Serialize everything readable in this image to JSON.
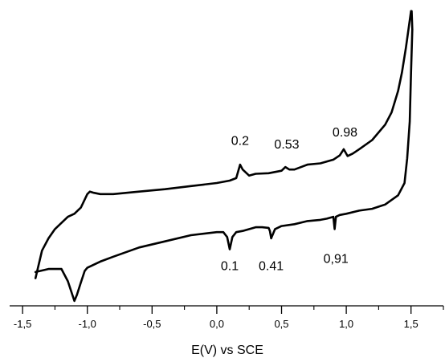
{
  "chart_data": {
    "type": "line",
    "title": "",
    "xlabel": "E(V) vs SCE",
    "ylabel": "",
    "xlim": [
      -1.6,
      1.75
    ],
    "ylim": [
      -1.0,
      3.85
    ],
    "grid": false,
    "legend": "none",
    "x_ticks": [
      -1.5,
      -1.0,
      -0.5,
      0.0,
      0.5,
      1.0,
      1.5
    ],
    "x_tick_labels": [
      "-1,5",
      "-1,0",
      "-0,5",
      "0,0",
      "0,5",
      "1,0",
      "1,5"
    ],
    "line_color": "#000000",
    "series": [
      {
        "x": [
          -1.4,
          -1.35,
          -1.3,
          -1.25,
          -1.2,
          -1.15,
          -1.1,
          -1.05,
          -1.0,
          -0.98,
          -0.95,
          -0.9,
          -0.8,
          -0.6,
          -0.4,
          -0.2,
          0.0,
          0.1,
          0.15,
          0.18,
          0.2,
          0.25,
          0.3,
          0.4,
          0.5,
          0.53,
          0.56,
          0.6,
          0.7,
          0.8,
          0.9,
          0.95,
          0.98,
          1.01,
          1.05,
          1.1,
          1.2,
          1.3,
          1.35,
          1.4,
          1.43,
          1.46,
          1.48,
          1.5,
          1.505,
          1.51
        ],
        "y": [
          -0.55,
          -0.1,
          0.1,
          0.25,
          0.35,
          0.45,
          0.5,
          0.6,
          0.82,
          0.86,
          0.84,
          0.82,
          0.82,
          0.86,
          0.9,
          0.95,
          1.0,
          1.04,
          1.08,
          1.3,
          1.22,
          1.12,
          1.15,
          1.16,
          1.2,
          1.26,
          1.22,
          1.22,
          1.3,
          1.32,
          1.38,
          1.45,
          1.55,
          1.44,
          1.48,
          1.55,
          1.7,
          1.95,
          2.15,
          2.5,
          2.8,
          3.2,
          3.5,
          3.8,
          3.8,
          3.5
        ]
      },
      {
        "x": [
          1.51,
          1.5,
          1.49,
          1.47,
          1.45,
          1.4,
          1.3,
          1.2,
          1.1,
          1.0,
          0.95,
          0.92,
          0.91,
          0.9,
          0.85,
          0.8,
          0.7,
          0.6,
          0.5,
          0.45,
          0.42,
          0.41,
          0.4,
          0.35,
          0.3,
          0.2,
          0.15,
          0.12,
          0.1,
          0.08,
          0.05,
          0.0,
          -0.2,
          -0.4,
          -0.6,
          -0.8,
          -0.9,
          -1.0,
          -1.02,
          -1.05,
          -1.08,
          -1.1,
          -1.15,
          -1.2,
          -1.3,
          -1.4
        ],
        "y": [
          3.5,
          2.8,
          2.0,
          1.4,
          1.0,
          0.8,
          0.65,
          0.58,
          0.55,
          0.5,
          0.48,
          0.45,
          0.25,
          0.45,
          0.42,
          0.4,
          0.38,
          0.33,
          0.3,
          0.25,
          0.1,
          0.22,
          0.27,
          0.28,
          0.28,
          0.22,
          0.2,
          0.12,
          -0.08,
          0.12,
          0.2,
          0.2,
          0.15,
          0.05,
          -0.05,
          -0.2,
          -0.28,
          -0.38,
          -0.43,
          -0.62,
          -0.82,
          -0.92,
          -0.6,
          -0.4,
          -0.4,
          -0.45
        ]
      }
    ],
    "annotations": [
      {
        "text": "0.2",
        "x": 0.18,
        "y": 1.62
      },
      {
        "text": "0.53",
        "x": 0.54,
        "y": 1.56
      },
      {
        "text": "0.98",
        "x": 0.99,
        "y": 1.76
      },
      {
        "text": "0.1",
        "x": 0.1,
        "y": -0.42
      },
      {
        "text": "0.41",
        "x": 0.42,
        "y": -0.42
      },
      {
        "text": "0,91",
        "x": 0.92,
        "y": -0.3
      }
    ]
  }
}
